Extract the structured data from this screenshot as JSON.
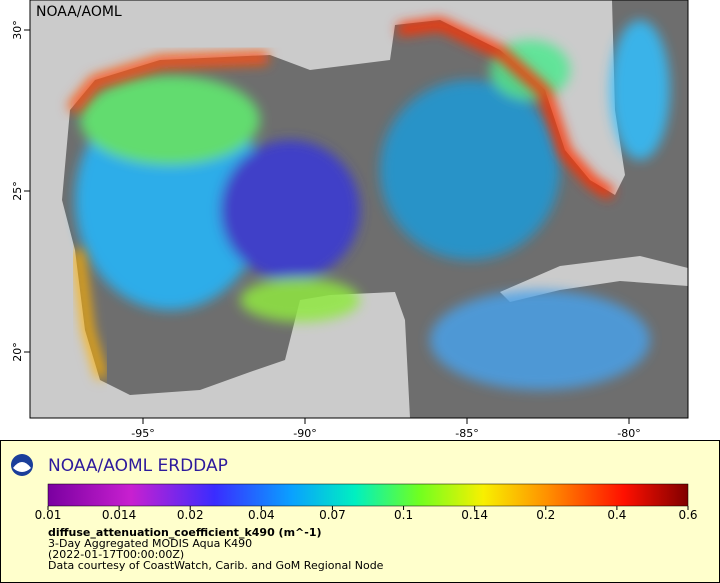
{
  "map": {
    "watermark": "NOAA/AOML",
    "lat_ticks": [
      {
        "value": 30,
        "label": "30°"
      },
      {
        "value": 25,
        "label": "25°"
      },
      {
        "value": 20,
        "label": "20°"
      }
    ],
    "lon_ticks": [
      {
        "value": -95,
        "label": "-95°"
      },
      {
        "value": -90,
        "label": "-90°"
      },
      {
        "value": -85,
        "label": "-85°"
      },
      {
        "value": -80,
        "label": "-80°"
      }
    ]
  },
  "legend": {
    "title": "NOAA/AOML ERDDAP",
    "colorbar_ticks": [
      0.01,
      0.014,
      0.02,
      0.04,
      0.07,
      0.1,
      0.14,
      0.2,
      0.4,
      0.6
    ],
    "variable": "diffuse_attenuation_coefficient_k490 (m^-1)",
    "lines": [
      "3-Day Aggregated MODIS Aqua K490",
      "(2022-01-17T00:00:00Z)",
      "Data courtesy of CoastWatch, Carib. and GoM Regional Node"
    ]
  }
}
